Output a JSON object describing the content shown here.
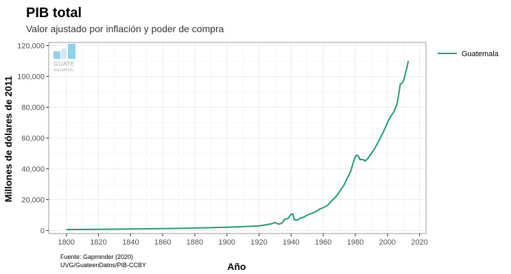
{
  "header": {
    "title": "PIB total",
    "subtitle": "Valor ajustado por inflación y poder de compra"
  },
  "logo": {
    "line1": "GUATE",
    "line2": "EN DATOS"
  },
  "source": {
    "line1": "Fuente: Gapminder (2020)",
    "line2": "UVG/GuateenDatos/PIB-CCBY"
  },
  "colors": {
    "series": "#1a9a78",
    "grid": "#ebebeb",
    "panel_border": "#999999",
    "logo": "#8fd0ec"
  },
  "chart_data": {
    "type": "line",
    "title": "PIB total",
    "xlabel": "Año",
    "ylabel": "Millones de dólares de 2011",
    "xlim": [
      1800,
      2020
    ],
    "ylim": [
      0,
      120000
    ],
    "xticks": [
      1800,
      1820,
      1840,
      1860,
      1880,
      1900,
      1920,
      1940,
      1960,
      1980,
      2000,
      2020
    ],
    "yticks": [
      0,
      20000,
      40000,
      60000,
      80000,
      100000,
      120000
    ],
    "ytick_labels": [
      "0",
      "20,000",
      "40,000",
      "60,000",
      "80,000",
      "100,000",
      "120,000"
    ],
    "legend": {
      "position": "right",
      "entries": [
        "Guatemala"
      ]
    },
    "series": [
      {
        "name": "Guatemala",
        "x": [
          1800,
          1820,
          1840,
          1860,
          1880,
          1900,
          1910,
          1920,
          1922,
          1925,
          1928,
          1930,
          1932,
          1934,
          1935,
          1936,
          1938,
          1940,
          1941,
          1942,
          1943,
          1944,
          1946,
          1948,
          1950,
          1955,
          1958,
          1960,
          1963,
          1965,
          1968,
          1970,
          1973,
          1975,
          1977,
          1979,
          1980,
          1981,
          1982,
          1983,
          1985,
          1986,
          1988,
          1990,
          1992,
          1994,
          1996,
          1998,
          2000,
          2002,
          2004,
          2006,
          2007,
          2008,
          2009,
          2010,
          2011,
          2012,
          2013
        ],
        "values": [
          600,
          800,
          1000,
          1200,
          1600,
          2100,
          2500,
          3000,
          3300,
          3800,
          4400,
          5200,
          4100,
          4600,
          5700,
          7300,
          7700,
          10500,
          10800,
          7000,
          6900,
          6700,
          8200,
          8700,
          10000,
          12000,
          14000,
          14800,
          16500,
          19000,
          22000,
          25000,
          29500,
          34000,
          38000,
          45000,
          48000,
          49000,
          48000,
          46000,
          46000,
          45000,
          47000,
          50000,
          53000,
          57000,
          61000,
          65000,
          70000,
          74000,
          77000,
          82000,
          88000,
          95000,
          95500,
          97000,
          101000,
          105000,
          110000
        ]
      }
    ]
  }
}
